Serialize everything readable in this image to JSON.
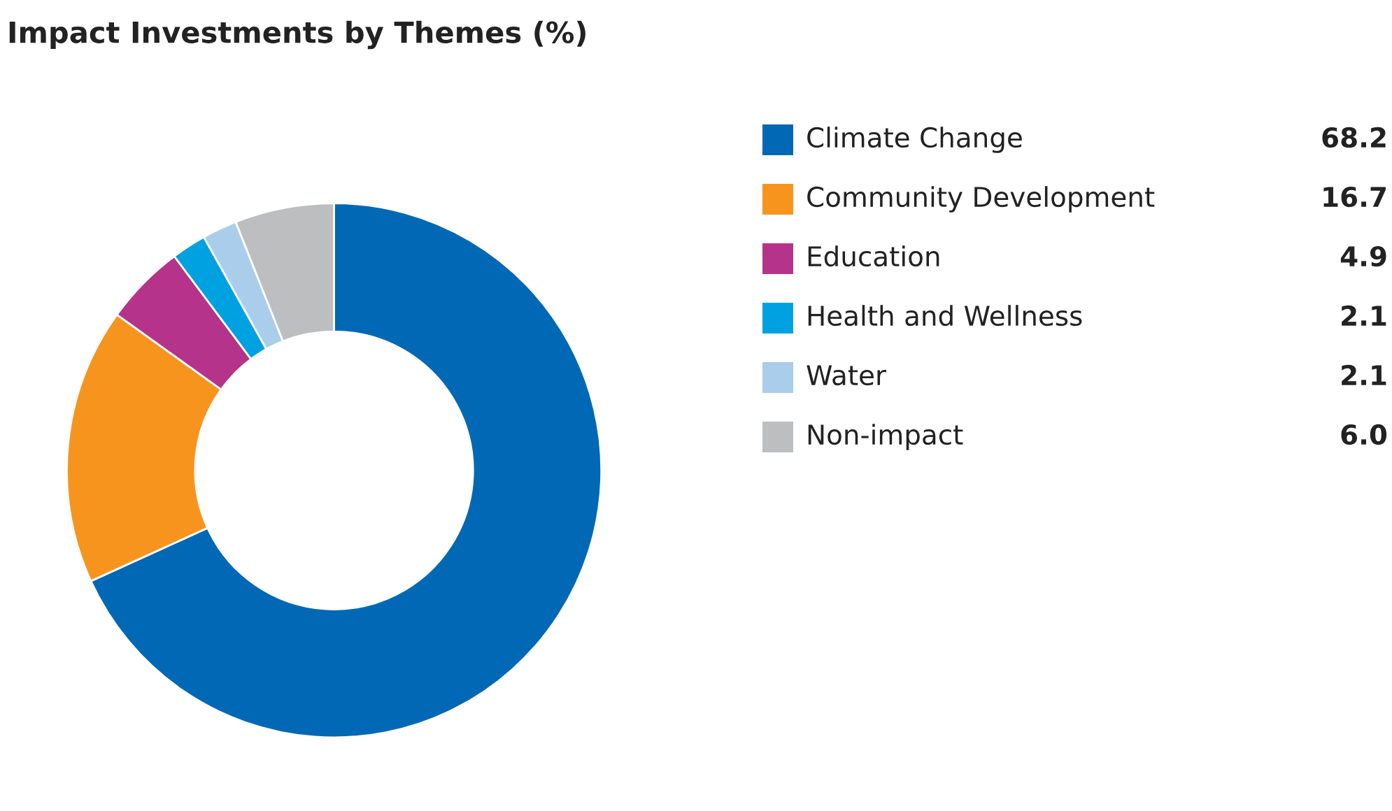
{
  "chart_data": {
    "type": "donut",
    "title": "Impact Investments by Themes (%)",
    "categories": [
      "Climate Change",
      "Community Development",
      "Education",
      "Health and Wellness",
      "Water",
      "Non-impact"
    ],
    "values": [
      68.2,
      16.7,
      4.9,
      2.1,
      2.1,
      6.0
    ],
    "value_labels": [
      "68.2",
      "16.7",
      "4.9",
      "2.1",
      "2.1",
      "6.0"
    ],
    "colors": [
      "#0068b4",
      "#f7941d",
      "#b5338a",
      "#00a1e0",
      "#a9cdea",
      "#bcbec0"
    ],
    "legend": "right"
  }
}
